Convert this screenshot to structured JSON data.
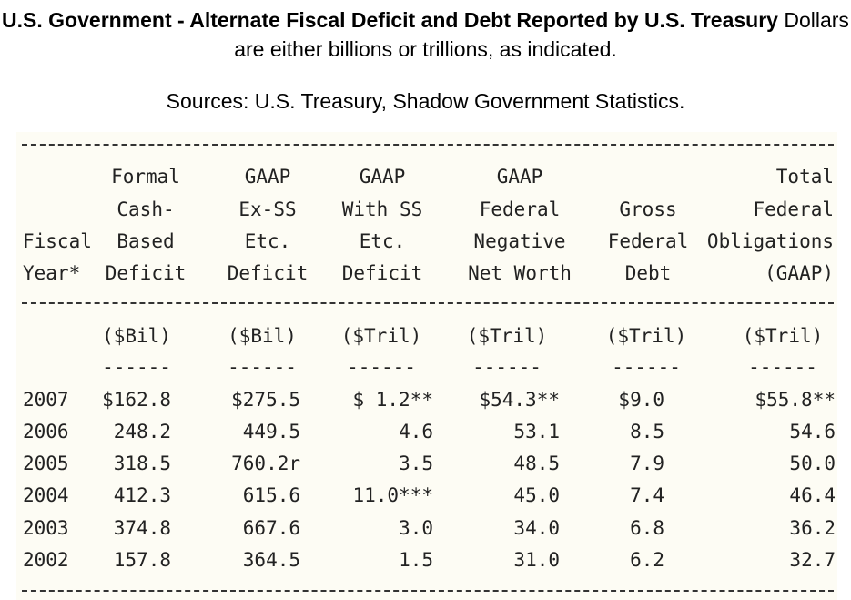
{
  "heading": {
    "title_bold": "U.S. Government - Alternate Fiscal Deficit and Debt Reported by U.S. Treasury",
    "title_rest": " Dollars are either billions or trillions, as indicated.",
    "sources": "Sources: U.S. Treasury, Shadow Government Statistics."
  },
  "table": {
    "columns": [
      {
        "header": [
          "",
          "",
          "Fiscal",
          "Year*"
        ],
        "unit": "",
        "underline": ""
      },
      {
        "header": [
          "Formal",
          "Cash-",
          "Based",
          "Deficit"
        ],
        "unit": "($Bil)",
        "underline": "------"
      },
      {
        "header": [
          "GAAP",
          "Ex-SS",
          "Etc.",
          "Deficit"
        ],
        "unit": "($Bil)",
        "underline": "------"
      },
      {
        "header": [
          "GAAP",
          "With SS",
          "Etc.",
          "Deficit"
        ],
        "unit": "($Tril)",
        "underline": "------"
      },
      {
        "header": [
          "GAAP",
          "Federal",
          "Negative",
          "Net Worth"
        ],
        "unit": "($Tril)",
        "underline": "------"
      },
      {
        "header": [
          "",
          "Gross",
          "Federal",
          "Debt"
        ],
        "unit": "($Tril)",
        "underline": "------"
      },
      {
        "header": [
          "Total",
          "Federal",
          "Obligations",
          "(GAAP)"
        ],
        "unit": "($Tril)",
        "underline": "------"
      }
    ],
    "rows": [
      [
        "2007",
        "$162.8",
        "$275.5",
        "$ 1.2**",
        "$54.3**",
        "$9.0",
        "$55.8**"
      ],
      [
        "2006",
        "248.2",
        "449.5",
        "4.6",
        "53.1",
        "8.5",
        "54.6"
      ],
      [
        "2005",
        "318.5",
        "760.2r",
        "3.5",
        "48.5",
        "7.9",
        "50.0"
      ],
      [
        "2004",
        "412.3",
        "615.6",
        "11.0***",
        "45.0",
        "7.4",
        "46.4"
      ],
      [
        "2003",
        "374.8",
        "667.6",
        "3.0",
        "34.0",
        "6.8",
        "36.2"
      ],
      [
        "2002",
        "157.8",
        "364.5",
        "1.5",
        "31.0",
        "6.2",
        "32.7"
      ]
    ]
  }
}
